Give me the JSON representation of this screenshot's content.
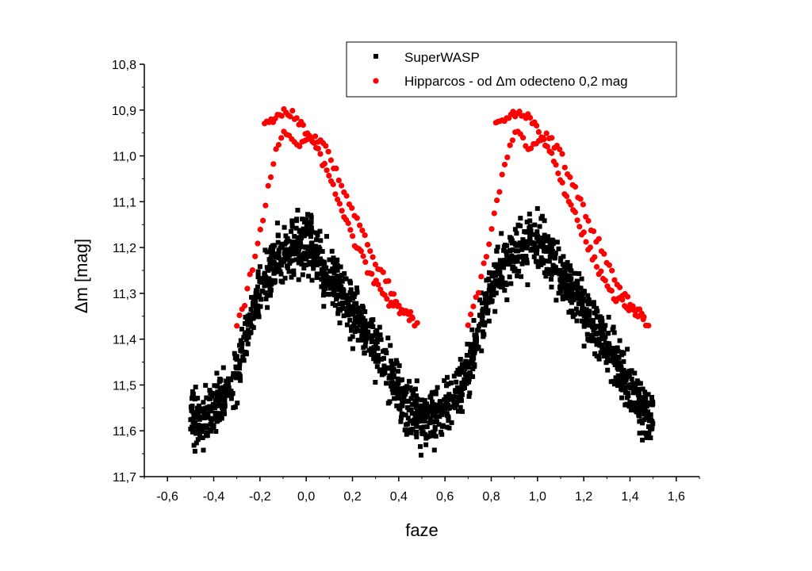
{
  "chart_data": {
    "type": "scatter",
    "title": "",
    "xlabel": "faze",
    "ylabel": "Δm [mag]",
    "xlim": [
      -0.7,
      1.7
    ],
    "ylim": [
      11.7,
      10.8
    ],
    "y_inverted": true,
    "x_ticks": [
      -0.6,
      -0.4,
      -0.2,
      0.0,
      0.2,
      0.4,
      0.6,
      0.8,
      1.0,
      1.2,
      1.4,
      1.6
    ],
    "x_tick_labels": [
      "-0,6",
      "-0,4",
      "-0,2",
      "0,0",
      "0,2",
      "0,4",
      "0,6",
      "0,8",
      "1,0",
      "1,2",
      "1,4",
      "1,6"
    ],
    "y_ticks": [
      10.8,
      10.9,
      11.0,
      11.1,
      11.2,
      11.3,
      11.4,
      11.5,
      11.6,
      11.7
    ],
    "y_tick_labels": [
      "10,8",
      "10,9",
      "11,0",
      "11,1",
      "11,2",
      "11,3",
      "11,4",
      "11,5",
      "11,6",
      "11,7"
    ],
    "grid": false,
    "legend_position": "top-right",
    "series": [
      {
        "name": "SuperWASP",
        "marker": "square",
        "color": "#000000",
        "x": [
          -0.5,
          -0.45,
          -0.4,
          -0.35,
          -0.3,
          -0.25,
          -0.2,
          -0.15,
          -0.1,
          -0.05,
          0.0,
          0.05,
          0.1,
          0.15,
          0.2,
          0.25,
          0.3,
          0.35,
          0.4,
          0.45,
          0.5,
          0.55,
          0.6,
          0.65,
          0.7,
          0.75,
          0.8,
          0.85,
          0.9,
          0.95,
          1.0,
          1.05,
          1.1,
          1.15,
          1.2,
          1.25,
          1.3,
          1.35,
          1.4,
          1.45,
          1.5
        ],
        "y": [
          11.58,
          11.57,
          11.55,
          11.52,
          11.48,
          11.38,
          11.28,
          11.24,
          11.21,
          11.2,
          11.19,
          11.22,
          11.26,
          11.3,
          11.34,
          11.38,
          11.42,
          11.46,
          11.51,
          11.55,
          11.57,
          11.57,
          11.55,
          11.52,
          11.47,
          11.38,
          11.28,
          11.24,
          11.21,
          11.2,
          11.19,
          11.22,
          11.26,
          11.3,
          11.34,
          11.38,
          11.42,
          11.46,
          11.51,
          11.55,
          11.57
        ]
      },
      {
        "name": "Hipparcos - od Δm odecteno 0,2 mag",
        "marker": "circle",
        "color": "#ff0000",
        "branches": [
          {
            "x": [
              -0.3,
              -0.26,
              -0.22,
              -0.19,
              -0.16,
              -0.13,
              -0.1,
              -0.07,
              -0.04,
              0.0,
              0.04,
              0.08,
              0.12,
              0.16,
              0.2,
              0.24,
              0.28,
              0.32,
              0.36,
              0.4,
              0.44,
              0.48
            ],
            "y": [
              11.37,
              11.3,
              11.22,
              11.14,
              11.06,
              10.99,
              10.95,
              10.96,
              10.98,
              10.97,
              10.96,
              10.98,
              11.02,
              11.07,
              11.12,
              11.16,
              11.21,
              11.25,
              11.29,
              11.32,
              11.35,
              11.37
            ]
          },
          {
            "x": [
              -0.18,
              -0.14,
              -0.1,
              -0.06,
              -0.02,
              0.02,
              0.06,
              0.1,
              0.14,
              0.18,
              0.22,
              0.26,
              0.3,
              0.34,
              0.38,
              0.42,
              0.46
            ],
            "y": [
              10.93,
              10.92,
              10.9,
              10.91,
              10.93,
              10.96,
              11.0,
              11.05,
              11.1,
              11.15,
              11.2,
              11.24,
              11.28,
              11.31,
              11.33,
              11.34,
              11.35
            ]
          }
        ]
      }
    ]
  }
}
